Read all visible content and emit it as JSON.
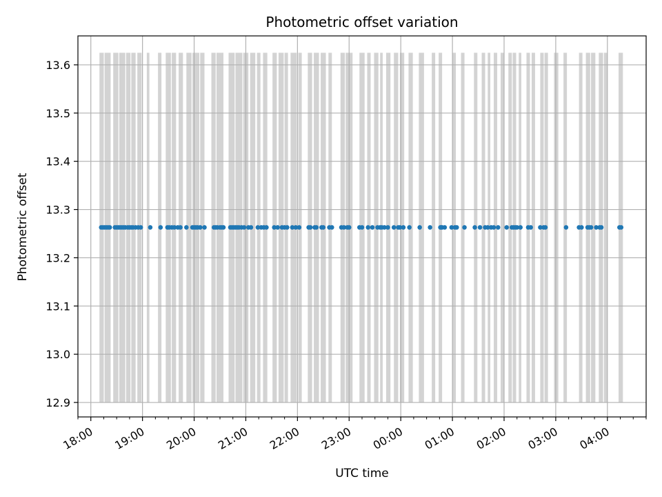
{
  "chart_data": {
    "type": "scatter",
    "title": "Photometric offset variation",
    "xlabel": "UTC time",
    "ylabel": "Photometric offset",
    "x_range": [
      "17:45",
      "04:45"
    ],
    "ylim": [
      12.87,
      13.66
    ],
    "x_ticks": [
      "18:00",
      "19:00",
      "20:00",
      "21:00",
      "22:00",
      "23:00",
      "00:00",
      "01:00",
      "02:00",
      "03:00",
      "04:00"
    ],
    "y_ticks": [
      "12.9",
      "13.0",
      "13.1",
      "13.2",
      "13.3",
      "13.4",
      "13.5",
      "13.6"
    ],
    "grid": true,
    "band_range": [
      12.9,
      13.625
    ],
    "band_color": "#d3d3d3",
    "point_color": "#1f77b4",
    "y_value": 13.263,
    "series": [
      {
        "marker": "dot",
        "x": [
          "18:12",
          "18:14",
          "18:16",
          "18:18",
          "18:20",
          "18:22",
          "18:28",
          "18:30",
          "18:32",
          "18:34",
          "18:36",
          "18:38",
          "18:40",
          "18:43",
          "18:45",
          "18:47",
          "18:49",
          "18:52",
          "18:55",
          "18:58",
          "19:09",
          "19:21",
          "19:29",
          "19:31",
          "19:34",
          "19:37",
          "19:41",
          "19:44",
          "19:51",
          "19:58",
          "20:00",
          "20:02",
          "20:04",
          "20:07",
          "20:12",
          "20:23",
          "20:25",
          "20:27",
          "20:30",
          "20:32",
          "20:34",
          "20:42",
          "20:44",
          "20:46",
          "20:48",
          "20:50",
          "20:52",
          "20:55",
          "20:58",
          "21:03",
          "21:06",
          "21:14",
          "21:18",
          "21:21",
          "21:24",
          "21:33",
          "21:37",
          "21:42",
          "21:45",
          "21:48",
          "21:54",
          "21:58",
          "22:02",
          "22:13",
          "22:15",
          "22:20",
          "22:22",
          "22:28",
          "22:30",
          "22:37",
          "22:40",
          "22:51",
          "22:54",
          "22:58",
          "23:00",
          "23:12",
          "23:15",
          "23:22",
          "23:27",
          "23:33",
          "23:36",
          "23:38",
          "23:41",
          "23:45",
          "23:52",
          "23:57",
          "23:59",
          "00:03",
          "00:10",
          "00:22",
          "00:34",
          "00:48",
          "00:59",
          "00:47",
          "00:46",
          "00:51",
          "01:03",
          "01:05",
          "01:14",
          "01:26",
          "01:32",
          "01:38",
          "01:41",
          "01:45",
          "01:48",
          "01:53",
          "02:03",
          "02:09",
          "02:11",
          "02:13",
          "02:15",
          "02:19",
          "02:28",
          "02:31",
          "02:42",
          "02:46",
          "02:48",
          "03:12",
          "03:27",
          "03:30",
          "03:37",
          "03:39",
          "03:41",
          "03:47",
          "03:51",
          "03:53",
          "04:14",
          "04:16"
        ],
        "y_note": "all points lie at approximately 13.263"
      }
    ],
    "bands": [
      [
        "18:10",
        "18:15"
      ],
      [
        "18:16",
        "18:23"
      ],
      [
        "18:26",
        "18:32"
      ],
      [
        "18:33",
        "18:40"
      ],
      [
        "18:41",
        "18:46"
      ],
      [
        "18:47",
        "18:52"
      ],
      [
        "18:54",
        "18:59"
      ],
      [
        "19:05",
        "19:08"
      ],
      [
        "19:18",
        "19:22"
      ],
      [
        "19:27",
        "19:33"
      ],
      [
        "19:34",
        "19:39"
      ],
      [
        "19:42",
        "19:47"
      ],
      [
        "19:51",
        "19:57"
      ],
      [
        "19:58",
        "20:06"
      ],
      [
        "20:07",
        "20:12"
      ],
      [
        "20:20",
        "20:25"
      ],
      [
        "20:26",
        "20:34"
      ],
      [
        "20:40",
        "20:47"
      ],
      [
        "20:48",
        "20:56"
      ],
      [
        "20:57",
        "21:03"
      ],
      [
        "21:05",
        "21:11"
      ],
      [
        "21:13",
        "21:17"
      ],
      [
        "21:20",
        "21:25"
      ],
      [
        "21:31",
        "21:36"
      ],
      [
        "21:38",
        "21:44"
      ],
      [
        "21:45",
        "21:49"
      ],
      [
        "21:52",
        "21:59"
      ],
      [
        "22:01",
        "22:05"
      ],
      [
        "22:12",
        "22:17"
      ],
      [
        "22:19",
        "22:25"
      ],
      [
        "22:27",
        "22:33"
      ],
      [
        "22:36",
        "22:40"
      ],
      [
        "22:50",
        "22:55"
      ],
      [
        "22:56",
        "23:04"
      ],
      [
        "23:12",
        "23:18"
      ],
      [
        "23:21",
        "23:25"
      ],
      [
        "23:29",
        "23:34"
      ],
      [
        "23:36",
        "23:39"
      ],
      [
        "23:43",
        "23:48"
      ],
      [
        "23:52",
        "23:57"
      ],
      [
        "23:59",
        "00:04"
      ],
      [
        "00:09",
        "00:14"
      ],
      [
        "00:21",
        "00:27"
      ],
      [
        "00:36",
        "00:40"
      ],
      [
        "00:44",
        "00:48"
      ],
      [
        "01:00",
        "01:04"
      ],
      [
        "01:10",
        "01:14"
      ],
      [
        "01:25",
        "01:29"
      ],
      [
        "01:34",
        "01:38"
      ],
      [
        "01:41",
        "01:44"
      ],
      [
        "01:48",
        "01:52"
      ],
      [
        "01:56",
        "02:00"
      ],
      [
        "02:05",
        "02:09"
      ],
      [
        "02:10",
        "02:14"
      ],
      [
        "02:17",
        "02:20"
      ],
      [
        "02:26",
        "02:30"
      ],
      [
        "02:32",
        "02:36"
      ],
      [
        "02:42",
        "02:46"
      ],
      [
        "02:47",
        "02:51"
      ],
      [
        "02:58",
        "03:03"
      ],
      [
        "03:09",
        "03:13"
      ],
      [
        "03:27",
        "03:31"
      ],
      [
        "03:35",
        "03:40"
      ],
      [
        "03:41",
        "03:46"
      ],
      [
        "03:50",
        "03:55"
      ],
      [
        "03:56",
        "04:00"
      ],
      [
        "04:13",
        "04:18"
      ]
    ]
  }
}
